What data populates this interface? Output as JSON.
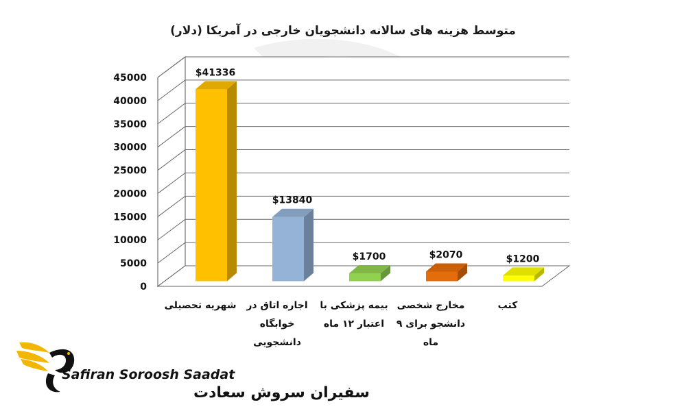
{
  "chart_data": {
    "type": "bar",
    "title": "متوسط هزینه های سالانه دانشجویان خارجی در آمریکا (دلار)",
    "categories": [
      [
        "شهریه تحصیلی"
      ],
      [
        "اجاره اتاق در",
        "خوابگاه",
        "دانشجویی"
      ],
      [
        "بیمه پزشکی با",
        "اعتبار ۱۲ ماه"
      ],
      [
        "مخارج شخصی",
        "دانشجو برای ۹",
        "ماه"
      ],
      [
        "کتب"
      ]
    ],
    "values": [
      41336,
      13840,
      1700,
      2070,
      1200
    ],
    "data_labels": [
      "$41336",
      "$13840",
      "$1700",
      "$2070",
      "$1200"
    ],
    "y_ticks": [
      "0",
      "5000",
      "10000",
      "15000",
      "20000",
      "25000",
      "30000",
      "35000",
      "40000",
      "45000"
    ],
    "ylim": [
      0,
      45000
    ],
    "grid": true,
    "bar_colors": [
      "#ffc000",
      "#95b3d7",
      "#92d050",
      "#e46c0a",
      "#ffff00"
    ],
    "style": "3d-column"
  },
  "logo": {
    "name_en": "Safiran Soroosh Saadat",
    "name_fa": "سفیران سروش سعادت",
    "colors": {
      "gold": "#f2b705",
      "dark": "#111111"
    }
  }
}
